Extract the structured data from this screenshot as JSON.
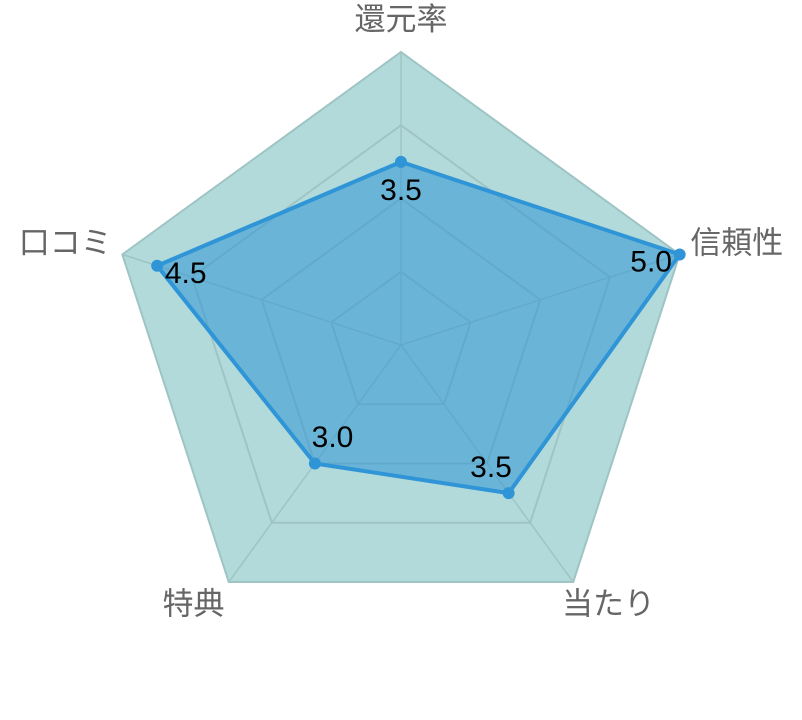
{
  "chart_data": {
    "type": "radar",
    "categories": [
      "還元率",
      "信頼性",
      "当たり",
      "特典",
      "口コミ"
    ],
    "values": [
      3.5,
      5.0,
      3.5,
      3.0,
      4.5
    ],
    "value_labels": [
      "3.5",
      "5.0",
      "3.5",
      "3.0",
      "4.5"
    ],
    "rlim": [
      1,
      5
    ],
    "rticks": [
      1,
      2,
      3,
      4,
      5
    ],
    "color": "#2f95d6",
    "background_color": "#b2dada",
    "grid": true
  }
}
